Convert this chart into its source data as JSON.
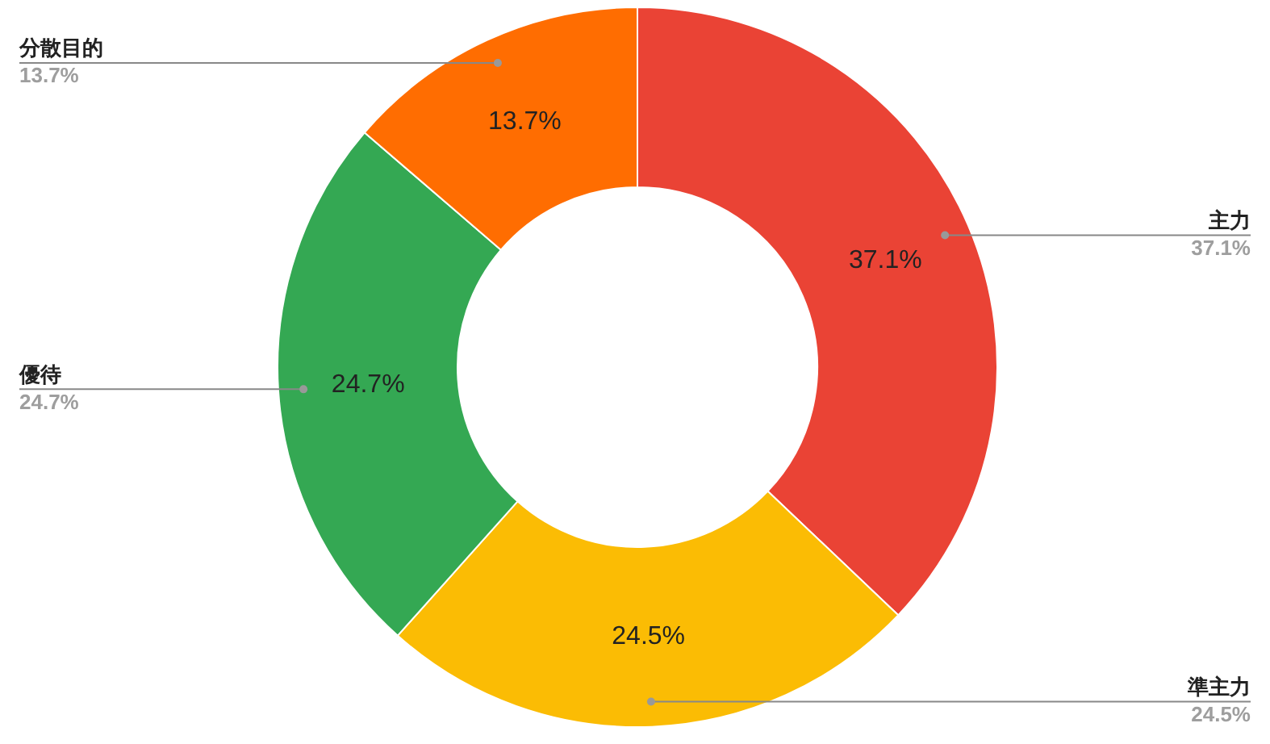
{
  "chart_data": {
    "type": "donut",
    "categories": [
      "主力",
      "準主力",
      "優待",
      "分散目的"
    ],
    "values": [
      37.1,
      24.5,
      24.7,
      13.7
    ],
    "value_labels": [
      "37.1%",
      "24.5%",
      "24.7%",
      "13.7%"
    ],
    "annotations": [
      "37.1%",
      "24.5%",
      "24.7%",
      "13.7%"
    ],
    "colors": [
      "#ea4335",
      "#fbbc04",
      "#34a853",
      "#ff6d01"
    ],
    "legend": false
  }
}
